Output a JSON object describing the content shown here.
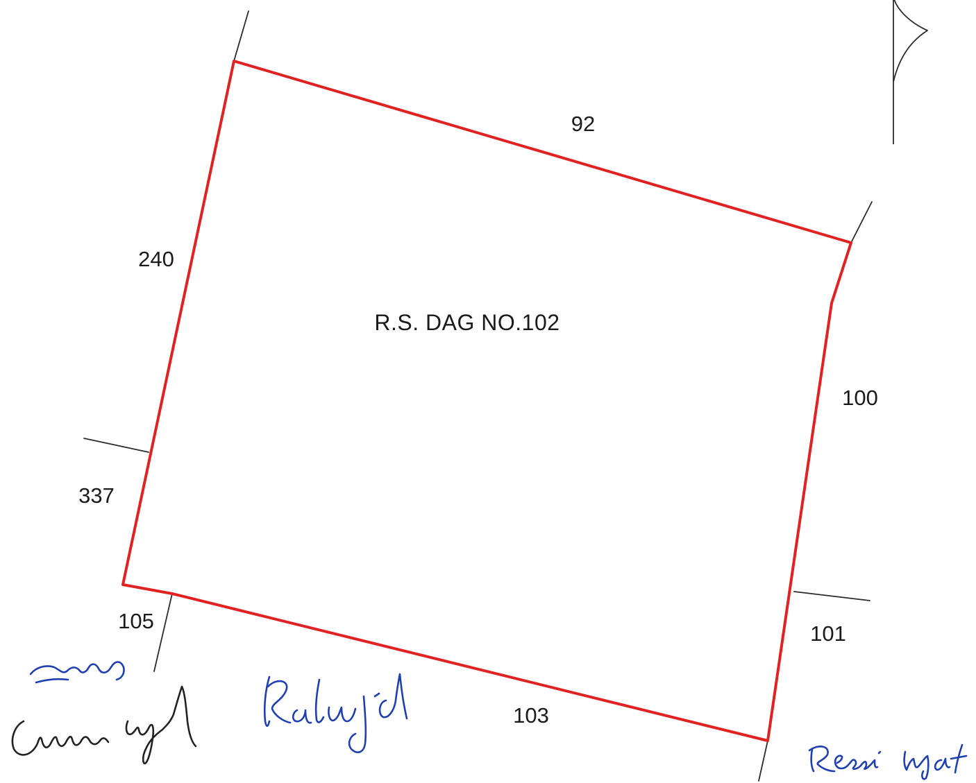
{
  "plot": {
    "label": "R.S. DAG NO.102",
    "boundary_color": "#e02222"
  },
  "adjacent_plots": [
    {
      "number": "92"
    },
    {
      "number": "240"
    },
    {
      "number": "100"
    },
    {
      "number": "337"
    },
    {
      "number": "105"
    },
    {
      "number": "101"
    },
    {
      "number": "103"
    }
  ],
  "north_arrow": {
    "icon": "north-arrow-icon"
  },
  "signatures": [
    {
      "name": "signature-initials",
      "text": "",
      "color": "#1f3fb0"
    },
    {
      "name": "signature-umar-uzzal",
      "text": "",
      "color": "#222222"
    },
    {
      "name": "signature-rahul",
      "text": "",
      "color": "#1f3fb0"
    },
    {
      "name": "signature-resmi",
      "text": "",
      "color": "#1f3fb0"
    }
  ]
}
